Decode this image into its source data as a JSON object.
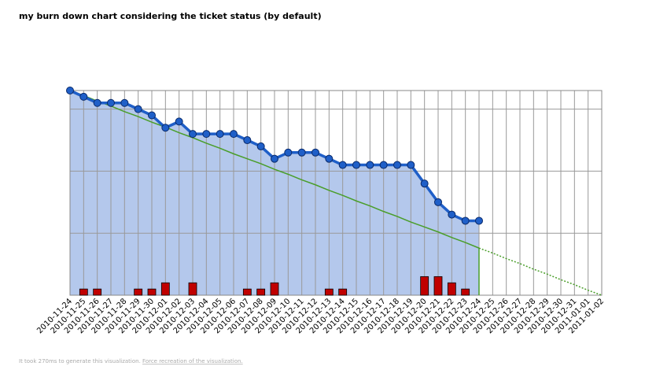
{
  "chart_data": {
    "type": "burndown",
    "title": "my burn down chart considering the ticket status (by default)",
    "categories": [
      "2010-11-24",
      "2010-11-25",
      "2010-11-26",
      "2010-11-27",
      "2010-11-28",
      "2010-11-29",
      "2010-11-30",
      "2010-12-01",
      "2010-12-02",
      "2010-12-03",
      "2010-12-04",
      "2010-12-05",
      "2010-12-06",
      "2010-12-07",
      "2010-12-08",
      "2010-12-09",
      "2010-12-10",
      "2010-12-11",
      "2010-12-12",
      "2010-12-13",
      "2010-12-14",
      "2010-12-15",
      "2010-12-16",
      "2010-12-17",
      "2010-12-18",
      "2010-12-19",
      "2010-12-20",
      "2010-12-21",
      "2010-12-22",
      "2010-12-23",
      "2010-12-24",
      "2010-12-25",
      "2010-12-26",
      "2010-12-27",
      "2010-12-28",
      "2010-12-29",
      "2010-12-30",
      "2010-12-31",
      "2011-01-01",
      "2011-01-02"
    ],
    "series": [
      {
        "kind": "area-line",
        "color": "#1f5fc8",
        "fill": "#b4c8ec",
        "values": [
          33,
          32,
          31,
          31,
          31,
          30,
          29,
          27,
          28,
          26,
          26,
          26,
          26,
          25,
          24,
          22,
          23,
          23,
          23,
          22,
          21,
          21,
          21,
          21,
          21,
          21,
          18,
          15,
          13,
          12,
          12,
          null,
          null,
          null,
          null,
          null,
          null,
          null,
          null,
          null
        ]
      },
      {
        "kind": "ideal",
        "color": "#4a9e2a",
        "values": [
          33,
          32.2,
          31.3,
          30.5,
          29.6,
          28.8,
          27.9,
          27.1,
          26.2,
          25.4,
          24.5,
          23.7,
          22.8,
          22,
          21.2,
          20.3,
          19.5,
          18.6,
          17.8,
          16.9,
          16.1,
          15.2,
          14.4,
          13.5,
          12.7,
          11.8,
          11,
          10.2,
          9.3,
          8.5,
          7.6,
          6.8,
          5.9,
          5.1,
          4.2,
          3.4,
          2.5,
          1.7,
          0.8,
          0
        ]
      },
      {
        "kind": "bar",
        "color": "#c00000",
        "values": [
          0,
          1,
          1,
          0,
          0,
          1,
          1,
          2,
          0,
          2,
          0,
          0,
          0,
          1,
          1,
          2,
          0,
          0,
          0,
          1,
          1,
          0,
          0,
          0,
          0,
          0,
          3,
          3,
          2,
          1,
          0,
          null,
          null,
          null,
          null,
          null,
          null,
          null,
          null,
          null
        ]
      }
    ],
    "ylim": [
      0,
      33
    ],
    "yticks": [
      0,
      10,
      20,
      30
    ],
    "grid": true
  },
  "footer": {
    "text": "It took 270ms to generate this visualization.",
    "link": "Force recreation of the visualization."
  }
}
